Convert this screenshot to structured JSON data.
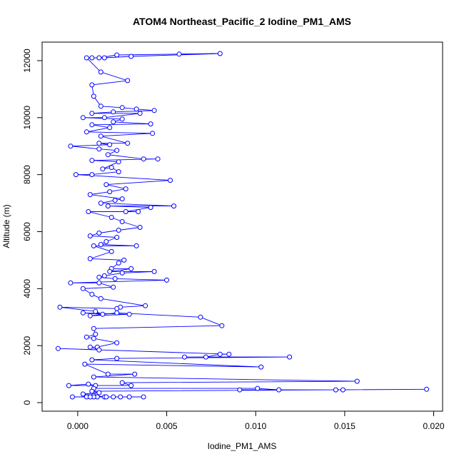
{
  "chart_data": {
    "type": "line",
    "title": "ATOM4 Northeast_Pacific_2 Iodine_PM1_AMS",
    "xlabel": "Iodine_PM1_AMS",
    "ylabel": "Altitude (m)",
    "xlim": [
      -0.002,
      0.0205
    ],
    "ylim": [
      -300,
      12650
    ],
    "x_ticks": [
      0.0,
      0.005,
      0.01,
      0.015,
      0.02
    ],
    "x_tick_labels": [
      "0.000",
      "0.005",
      "0.010",
      "0.015",
      "0.020"
    ],
    "y_ticks": [
      0,
      2000,
      4000,
      6000,
      8000,
      10000,
      12000
    ],
    "y_tick_labels": [
      "0",
      "2000",
      "4000",
      "6000",
      "8000",
      "10000",
      "12000"
    ],
    "grid": false,
    "legend": "none",
    "series": [
      {
        "color": "#0000ff",
        "marker": "open-circle",
        "points": [
          [
            0.0008,
            12100
          ],
          [
            0.0012,
            12100
          ],
          [
            0.0022,
            12200
          ],
          [
            0.0057,
            12230
          ],
          [
            0.008,
            12250
          ],
          [
            0.003,
            12150
          ],
          [
            0.0015,
            12100
          ],
          [
            0.0005,
            12100
          ],
          [
            0.0013,
            11600
          ],
          [
            0.0028,
            11300
          ],
          [
            0.0008,
            11150
          ],
          [
            0.0009,
            10750
          ],
          [
            0.0013,
            10400
          ],
          [
            0.0025,
            10350
          ],
          [
            0.0033,
            10300
          ],
          [
            0.0043,
            10250
          ],
          [
            0.002,
            10200
          ],
          [
            0.0008,
            10150
          ],
          [
            0.0035,
            10150
          ],
          [
            0.0015,
            10000
          ],
          [
            0.0003,
            10000
          ],
          [
            0.0025,
            9950
          ],
          [
            0.002,
            9850
          ],
          [
            0.0041,
            9780
          ],
          [
            0.0008,
            9750
          ],
          [
            0.0018,
            9650
          ],
          [
            0.0005,
            9500
          ],
          [
            0.0042,
            9450
          ],
          [
            0.0013,
            9350
          ],
          [
            0.0028,
            9100
          ],
          [
            0.0012,
            9100
          ],
          [
            0.0018,
            9050
          ],
          [
            -0.0004,
            9000
          ],
          [
            0.0012,
            8900
          ],
          [
            0.0022,
            8850
          ],
          [
            0.0017,
            8700
          ],
          [
            0.0037,
            8550
          ],
          [
            0.0045,
            8550
          ],
          [
            0.0008,
            8500
          ],
          [
            0.0023,
            8450
          ],
          [
            0.0014,
            8200
          ],
          [
            0.0019,
            8250
          ],
          [
            0.0023,
            8100
          ],
          [
            0.0008,
            8000
          ],
          [
            -0.0001,
            8000
          ],
          [
            0.0052,
            7800
          ],
          [
            0.0016,
            7650
          ],
          [
            0.0027,
            7500
          ],
          [
            0.0018,
            7400
          ],
          [
            0.0007,
            7300
          ],
          [
            0.0025,
            7150
          ],
          [
            0.0021,
            7100
          ],
          [
            0.0013,
            7000
          ],
          [
            0.0054,
            6900
          ],
          [
            0.0017,
            6900
          ],
          [
            0.0041,
            6850
          ],
          [
            0.0027,
            6700
          ],
          [
            0.0034,
            6700
          ],
          [
            0.0006,
            6700
          ],
          [
            0.0019,
            6500
          ],
          [
            0.0025,
            6350
          ],
          [
            0.0035,
            6150
          ],
          [
            0.0023,
            6050
          ],
          [
            0.0012,
            5950
          ],
          [
            0.0007,
            5850
          ],
          [
            0.0022,
            5800
          ],
          [
            0.0016,
            5650
          ],
          [
            0.0013,
            5550
          ],
          [
            0.0033,
            5500
          ],
          [
            0.0009,
            5500
          ],
          [
            0.0019,
            5300
          ],
          [
            0.0007,
            5050
          ],
          [
            0.0026,
            5000
          ],
          [
            0.0023,
            4900
          ],
          [
            0.0019,
            4700
          ],
          [
            0.003,
            4700
          ],
          [
            0.0018,
            4600
          ],
          [
            0.0043,
            4600
          ],
          [
            0.0025,
            4550
          ],
          [
            0.0015,
            4450
          ],
          [
            0.0012,
            4400
          ],
          [
            0.0021,
            4350
          ],
          [
            0.005,
            4300
          ],
          [
            -0.0004,
            4200
          ],
          [
            0.0012,
            4200
          ],
          [
            0.002,
            4050
          ],
          [
            0.0003,
            4000
          ],
          [
            0.0008,
            3800
          ],
          [
            0.0013,
            3650
          ],
          [
            0.0038,
            3400
          ],
          [
            0.0024,
            3350
          ],
          [
            0.0022,
            3300
          ],
          [
            -0.001,
            3350
          ],
          [
            0.001,
            3200
          ],
          [
            0.0014,
            3100
          ],
          [
            0.0003,
            3150
          ],
          [
            0.0029,
            3100
          ],
          [
            0.0007,
            3050
          ],
          [
            0.0022,
            3150
          ],
          [
            0.0069,
            3000
          ],
          [
            0.0081,
            2700
          ],
          [
            0.0009,
            2600
          ],
          [
            0.001,
            2400
          ],
          [
            0.0005,
            2300
          ],
          [
            0.0009,
            2250
          ],
          [
            0.0022,
            2100
          ],
          [
            0.0011,
            1950
          ],
          [
            0.0007,
            1950
          ],
          [
            0.0012,
            1850
          ],
          [
            -0.0011,
            1900
          ],
          [
            0.0085,
            1700
          ],
          [
            0.008,
            1700
          ],
          [
            0.0072,
            1600
          ],
          [
            0.006,
            1600
          ],
          [
            0.0119,
            1600
          ],
          [
            0.0022,
            1550
          ],
          [
            0.0008,
            1500
          ],
          [
            0.0103,
            1250
          ],
          [
            0.0004,
            1350
          ],
          [
            0.0017,
            1000
          ],
          [
            0.0032,
            1000
          ],
          [
            0.0009,
            900
          ],
          [
            0.0157,
            750
          ],
          [
            0.0025,
            700
          ],
          [
            0.003,
            600
          ],
          [
            -0.0005,
            600
          ],
          [
            0.0006,
            650
          ],
          [
            0.001,
            600
          ],
          [
            0.0009,
            500
          ],
          [
            0.0101,
            500
          ],
          [
            0.0113,
            450
          ],
          [
            0.0091,
            450
          ],
          [
            0.0145,
            450
          ],
          [
            0.0149,
            450
          ],
          [
            0.0196,
            470
          ],
          [
            0.0008,
            400
          ],
          [
            0.0012,
            350
          ],
          [
            0.0003,
            300
          ],
          [
            0.0009,
            250
          ],
          [
            0.0015,
            200
          ],
          [
            0.0005,
            200
          ],
          [
            0.0037,
            200
          ],
          [
            0.0029,
            200
          ],
          [
            0.0024,
            200
          ],
          [
            0.002,
            200
          ],
          [
            0.0016,
            200
          ],
          [
            0.0011,
            200
          ],
          [
            0.0009,
            200
          ],
          [
            0.0007,
            200
          ],
          [
            -0.0003,
            200
          ]
        ]
      }
    ]
  }
}
